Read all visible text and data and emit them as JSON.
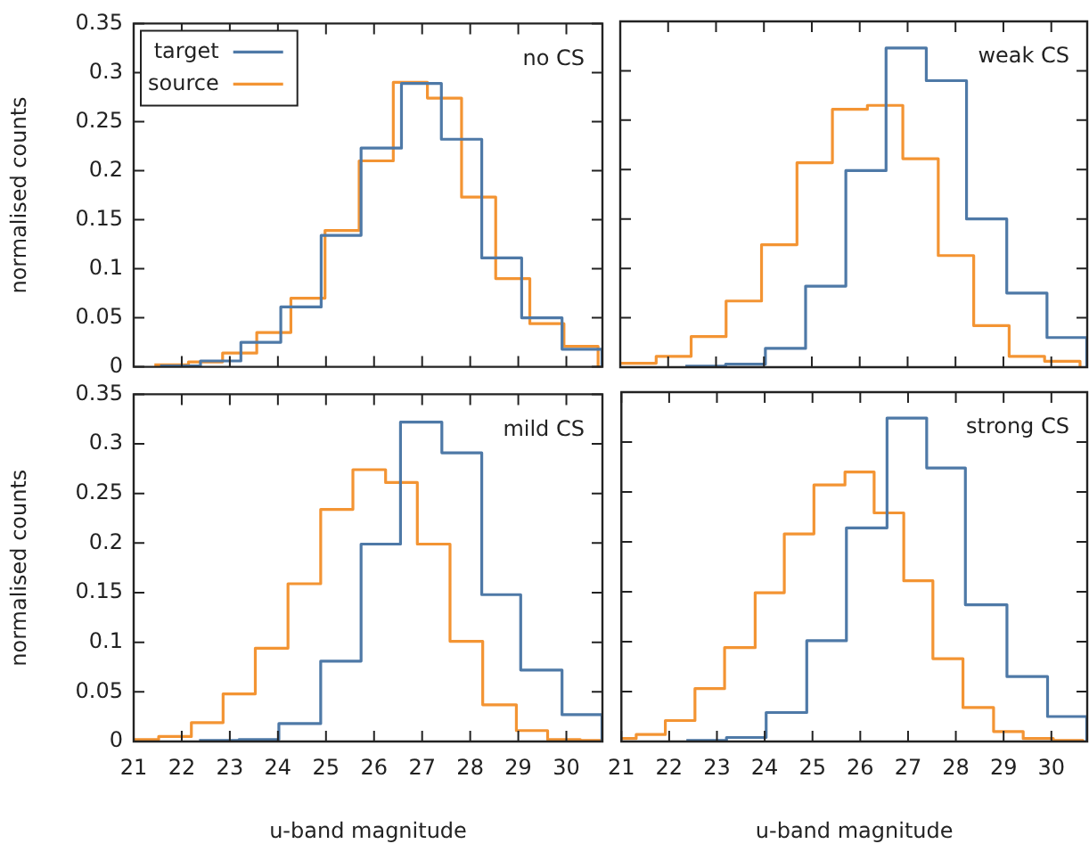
{
  "chart_data": [
    {
      "type": "step",
      "title": "no CS",
      "ylabel": "normalised counts",
      "xlim": [
        21,
        30.75
      ],
      "xticks": [
        21,
        22,
        23,
        24,
        25,
        26,
        27,
        28,
        29,
        30
      ],
      "ylim": [
        0,
        0.35
      ],
      "yticks": [
        0,
        0.05,
        0.1,
        0.15,
        0.2,
        0.25,
        0.3,
        0.35
      ],
      "tick_labels": "y",
      "legend": "top left",
      "series": [
        {
          "name": "target",
          "color": "#4e79a7",
          "x": [
            21.55,
            22.39,
            23.23,
            24.06,
            24.9,
            25.73,
            26.57,
            27.4,
            28.24,
            29.07,
            29.91,
            30.74
          ],
          "values": [
            0.001,
            0.006,
            0.025,
            0.061,
            0.134,
            0.223,
            0.289,
            0.232,
            0.111,
            0.05,
            0.018,
            0
          ]
        },
        {
          "name": "source",
          "color": "#f39433",
          "x": [
            21.43,
            22.14,
            22.85,
            23.56,
            24.27,
            24.98,
            25.69,
            26.4,
            27.11,
            27.82,
            28.53,
            29.24,
            29.95,
            30.66
          ],
          "values": [
            0.002,
            0.005,
            0.014,
            0.035,
            0.07,
            0.139,
            0.21,
            0.29,
            0.274,
            0.173,
            0.09,
            0.044,
            0.021,
            0
          ]
        }
      ]
    },
    {
      "type": "step",
      "title": "weak CS",
      "xlim": [
        21,
        30.75
      ],
      "xticks": [
        21,
        22,
        23,
        24,
        25,
        26,
        27,
        28,
        29,
        30
      ],
      "ylim": [
        0,
        0.35
      ],
      "yticks": [
        0,
        0.05,
        0.1,
        0.15,
        0.2,
        0.25,
        0.3,
        0.35
      ],
      "tick_labels": false,
      "series": [
        {
          "color": "#4e79a7",
          "x": [
            22.36,
            23.2,
            24.03,
            24.87,
            25.71,
            26.55,
            27.39,
            28.23,
            29.07,
            29.91,
            30.74
          ],
          "values": [
            0.001,
            0.003,
            0.019,
            0.082,
            0.199,
            0.323,
            0.29,
            0.15,
            0.075,
            0.03,
            0
          ]
        },
        {
          "color": "#f39433",
          "x": [
            21.02,
            21.75,
            22.48,
            23.21,
            23.95,
            24.69,
            25.43,
            26.16,
            26.9,
            27.64,
            28.38,
            29.12,
            29.86,
            30.6
          ],
          "values": [
            0.004,
            0.011,
            0.031,
            0.067,
            0.124,
            0.207,
            0.261,
            0.265,
            0.211,
            0.113,
            0.042,
            0.011,
            0.006,
            0
          ]
        }
      ]
    },
    {
      "type": "step",
      "title": "mild CS",
      "xlabel": "u-band magnitude",
      "ylabel": "normalised counts",
      "xlim": [
        21,
        30.75
      ],
      "xticks": [
        21,
        22,
        23,
        24,
        25,
        26,
        27,
        28,
        29,
        30
      ],
      "ylim": [
        0,
        0.35
      ],
      "yticks": [
        0,
        0.05,
        0.1,
        0.15,
        0.2,
        0.25,
        0.3,
        0.35
      ],
      "series": [
        {
          "color": "#4e79a7",
          "x": [
            22.36,
            23.19,
            24.02,
            24.89,
            25.73,
            26.55,
            27.41,
            28.24,
            29.05,
            29.91,
            30.74
          ],
          "values": [
            0.001,
            0.002,
            0.018,
            0.081,
            0.199,
            0.322,
            0.291,
            0.148,
            0.072,
            0.027,
            0
          ]
        },
        {
          "color": "#f39433",
          "x": [
            21,
            21.52,
            22.2,
            22.86,
            23.53,
            24.21,
            24.89,
            25.56,
            26.24,
            26.9,
            27.58,
            28.26,
            28.96,
            29.61,
            30.29,
            30.75
          ],
          "values": [
            0.002,
            0.005,
            0.019,
            0.048,
            0.094,
            0.159,
            0.234,
            0.274,
            0.261,
            0.199,
            0.101,
            0.037,
            0.011,
            0.002,
            0.001,
            0
          ]
        }
      ]
    },
    {
      "type": "step",
      "title": "strong CS",
      "xlabel": "u-band magnitude",
      "xlim": [
        21,
        30.75
      ],
      "xticks": [
        21,
        22,
        23,
        24,
        25,
        26,
        27,
        28,
        29,
        30
      ],
      "ylim": [
        0,
        0.35
      ],
      "yticks": [
        0,
        0.05,
        0.1,
        0.15,
        0.2,
        0.25,
        0.3,
        0.35
      ],
      "tick_labels": "x",
      "series": [
        {
          "color": "#4e79a7",
          "x": [
            22.36,
            23.2,
            24.03,
            24.88,
            25.71,
            26.56,
            27.39,
            28.2,
            29.07,
            29.92,
            30.74
          ],
          "values": [
            0.001,
            0.004,
            0.029,
            0.101,
            0.214,
            0.324,
            0.274,
            0.137,
            0.065,
            0.025,
            0
          ]
        },
        {
          "color": "#f39433",
          "x": [
            21,
            21.31,
            21.92,
            22.54,
            23.16,
            23.8,
            24.41,
            25.03,
            25.68,
            26.29,
            26.91,
            27.52,
            28.15,
            28.79,
            29.41,
            30.04,
            30.66
          ],
          "values": [
            0.003,
            0.007,
            0.021,
            0.053,
            0.094,
            0.149,
            0.208,
            0.257,
            0.27,
            0.229,
            0.161,
            0.083,
            0.034,
            0.01,
            0.003,
            0.001,
            0
          ]
        }
      ]
    }
  ]
}
